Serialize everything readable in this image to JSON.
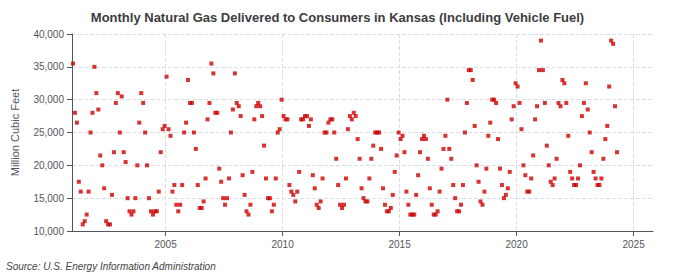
{
  "chart_data": {
    "type": "scatter",
    "title": "Monthly Natural Gas Delivered to Consumers in Kansas (Including Vehicle Fuel)",
    "ylabel": "Million Cubic Feet",
    "annotation": "Source: U.S. Energy Information Administration",
    "color": "#cc0000",
    "marker": "square",
    "grid": true,
    "xlim": [
      2001.0,
      2025.83
    ],
    "xticks": [
      2005,
      2010,
      2015,
      2020,
      2025
    ],
    "ylim": [
      10000,
      40000
    ],
    "yticks": [
      {
        "value": 10000,
        "label": "10,000"
      },
      {
        "value": 15000,
        "label": "15,000"
      },
      {
        "value": 20000,
        "label": "20,000"
      },
      {
        "value": 25000,
        "label": "25,000"
      },
      {
        "value": 30000,
        "label": "30,000"
      },
      {
        "value": 35000,
        "label": "35,000"
      },
      {
        "value": 40000,
        "label": "40,000"
      }
    ],
    "x": [
      2001.0416666667,
      2001.125,
      2001.2083333333,
      2001.2916666667,
      2001.375,
      2001.4583333333,
      2001.5416666667,
      2001.625,
      2001.7083333333,
      2001.7916666667,
      2001.875,
      2001.9583333333,
      2002.0416666667,
      2002.125,
      2002.2083333333,
      2002.2916666667,
      2002.375,
      2002.4583333333,
      2002.5416666667,
      2002.625,
      2002.7083333333,
      2002.7916666667,
      2002.875,
      2002.9583333333,
      2003.0416666667,
      2003.125,
      2003.2083333333,
      2003.2916666667,
      2003.375,
      2003.4583333333,
      2003.5416666667,
      2003.625,
      2003.7083333333,
      2003.7916666667,
      2003.875,
      2003.9583333333,
      2004.0416666667,
      2004.125,
      2004.2083333333,
      2004.2916666667,
      2004.375,
      2004.4583333333,
      2004.5416666667,
      2004.625,
      2004.7083333333,
      2004.7916666667,
      2004.875,
      2004.9583333333,
      2005.0416666667,
      2005.125,
      2005.2083333333,
      2005.2916666667,
      2005.375,
      2005.4583333333,
      2005.5416666667,
      2005.625,
      2005.7083333333,
      2005.7916666667,
      2005.875,
      2005.9583333333,
      2006.0416666667,
      2006.125,
      2006.2083333333,
      2006.2916666667,
      2006.375,
      2006.4583333333,
      2006.5416666667,
      2006.625,
      2006.7083333333,
      2006.7916666667,
      2006.875,
      2006.9583333333,
      2007.0416666667,
      2007.125,
      2007.2083333333,
      2007.2916666667,
      2007.375,
      2007.4583333333,
      2007.5416666667,
      2007.625,
      2007.7083333333,
      2007.7916666667,
      2007.875,
      2007.9583333333,
      2008.0416666667,
      2008.125,
      2008.2083333333,
      2008.2916666667,
      2008.375,
      2008.4583333333,
      2008.5416666667,
      2008.625,
      2008.7083333333,
      2008.7916666667,
      2008.875,
      2008.9583333333,
      2009.0416666667,
      2009.125,
      2009.2083333333,
      2009.2916666667,
      2009.375,
      2009.4583333333,
      2009.5416666667,
      2009.625,
      2009.7083333333,
      2009.7916666667,
      2009.875,
      2009.9583333333,
      2010.0416666667,
      2010.125,
      2010.2083333333,
      2010.2916666667,
      2010.375,
      2010.4583333333,
      2010.5416666667,
      2010.625,
      2010.7083333333,
      2010.7916666667,
      2010.875,
      2010.9583333333,
      2011.0416666667,
      2011.125,
      2011.2083333333,
      2011.2916666667,
      2011.375,
      2011.4583333333,
      2011.5416666667,
      2011.625,
      2011.7083333333,
      2011.7916666667,
      2011.875,
      2011.9583333333,
      2012.0416666667,
      2012.125,
      2012.2083333333,
      2012.2916666667,
      2012.375,
      2012.4583333333,
      2012.5416666667,
      2012.625,
      2012.7083333333,
      2012.7916666667,
      2012.875,
      2012.9583333333,
      2013.0416666667,
      2013.125,
      2013.2083333333,
      2013.2916666667,
      2013.375,
      2013.4583333333,
      2013.5416666667,
      2013.625,
      2013.7083333333,
      2013.7916666667,
      2013.875,
      2013.9583333333,
      2014.0416666667,
      2014.125,
      2014.2083333333,
      2014.2916666667,
      2014.375,
      2014.4583333333,
      2014.5416666667,
      2014.625,
      2014.7083333333,
      2014.7916666667,
      2014.875,
      2014.9583333333,
      2015.0416666667,
      2015.125,
      2015.2083333333,
      2015.2916666667,
      2015.375,
      2015.4583333333,
      2015.5416666667,
      2015.625,
      2015.7083333333,
      2015.7916666667,
      2015.875,
      2015.9583333333,
      2016.0416666667,
      2016.125,
      2016.2083333333,
      2016.2916666667,
      2016.375,
      2016.4583333333,
      2016.5416666667,
      2016.625,
      2016.7083333333,
      2016.7916666667,
      2016.875,
      2016.9583333333,
      2017.0416666667,
      2017.125,
      2017.2083333333,
      2017.2916666667,
      2017.375,
      2017.4583333333,
      2017.5416666667,
      2017.625,
      2017.7083333333,
      2017.7916666667,
      2017.875,
      2017.9583333333,
      2018.0416666667,
      2018.125,
      2018.2083333333,
      2018.2916666667,
      2018.375,
      2018.4583333333,
      2018.5416666667,
      2018.625,
      2018.7083333333,
      2018.7916666667,
      2018.875,
      2018.9583333333,
      2019.0416666667,
      2019.125,
      2019.2083333333,
      2019.2916666667,
      2019.375,
      2019.4583333333,
      2019.5416666667,
      2019.625,
      2019.7083333333,
      2019.7916666667,
      2019.875,
      2019.9583333333,
      2020.0416666667,
      2020.125,
      2020.2083333333,
      2020.2916666667,
      2020.375,
      2020.4583333333,
      2020.5416666667,
      2020.625,
      2020.7083333333,
      2020.7916666667,
      2020.875,
      2020.9583333333,
      2021.0416666667,
      2021.125,
      2021.2083333333,
      2021.2916666667,
      2021.375,
      2021.4583333333,
      2021.5416666667,
      2021.625,
      2021.7083333333,
      2021.7916666667,
      2021.875,
      2021.9583333333,
      2022.0416666667,
      2022.125,
      2022.2083333333,
      2022.2916666667,
      2022.375,
      2022.4583333333,
      2022.5416666667,
      2022.625,
      2022.7083333333,
      2022.7916666667,
      2022.875,
      2022.9583333333,
      2023.0416666667,
      2023.125,
      2023.2083333333,
      2023.2916666667,
      2023.375,
      2023.4583333333,
      2023.5416666667,
      2023.625,
      2023.7083333333,
      2023.7916666667,
      2023.875,
      2023.9583333333,
      2024.0416666667,
      2024.125,
      2024.2083333333,
      2024.2916666667
    ],
    "values": [
      35500,
      28000,
      26500,
      17500,
      16000,
      11000,
      11500,
      12500,
      16000,
      25000,
      28000,
      35000,
      31000,
      28500,
      21500,
      20000,
      16500,
      11500,
      11000,
      11000,
      15500,
      22000,
      29500,
      31000,
      25000,
      30500,
      22000,
      20500,
      15000,
      13000,
      12500,
      13000,
      15000,
      20000,
      26500,
      31000,
      29500,
      25000,
      20000,
      15000,
      13000,
      12500,
      13000,
      13000,
      16000,
      22000,
      25500,
      26000,
      33500,
      25500,
      24500,
      16000,
      17000,
      14000,
      13000,
      14000,
      17000,
      25000,
      26500,
      33000,
      29500,
      29500,
      25000,
      22500,
      17000,
      13500,
      13500,
      14500,
      18000,
      27000,
      29500,
      35500,
      34000,
      28000,
      28000,
      19500,
      17500,
      15000,
      14000,
      15000,
      18000,
      25000,
      28500,
      34000,
      29500,
      29000,
      27500,
      18500,
      15500,
      13000,
      12500,
      14000,
      19000,
      27000,
      29000,
      29500,
      29000,
      27500,
      23000,
      18000,
      15000,
      15000,
      13000,
      14000,
      18000,
      25000,
      25500,
      30000,
      27500,
      27000,
      27000,
      17000,
      16000,
      15500,
      14500,
      16000,
      19000,
      27000,
      27000,
      27500,
      27500,
      26000,
      27000,
      18500,
      16500,
      14000,
      13500,
      14500,
      18000,
      25000,
      25000,
      26500,
      27000,
      27000,
      25000,
      21000,
      17000,
      14000,
      13500,
      14000,
      18000,
      25500,
      27500,
      27000,
      28000,
      27500,
      24000,
      21000,
      16500,
      15000,
      14500,
      14500,
      18000,
      21000,
      23000,
      25000,
      25000,
      25000,
      22500,
      16500,
      14000,
      13000,
      13000,
      13500,
      15500,
      19000,
      21500,
      25000,
      24000,
      24500,
      22000,
      16000,
      14000,
      12500,
      12500,
      12500,
      15500,
      18500,
      22000,
      24000,
      24500,
      24000,
      21000,
      16500,
      14000,
      12500,
      12500,
      13000,
      16000,
      19500,
      22500,
      24500,
      30000,
      22500,
      21000,
      17000,
      15000,
      13000,
      13000,
      14000,
      17000,
      25000,
      29500,
      34500,
      34500,
      33000,
      26000,
      20000,
      17500,
      14500,
      14000,
      16000,
      19500,
      24500,
      26500,
      30000,
      30000,
      29500,
      24000,
      19500,
      17000,
      15000,
      15500,
      16500,
      19000,
      27000,
      29000,
      32500,
      32000,
      29500,
      25500,
      20000,
      18500,
      16000,
      16000,
      18000,
      21500,
      27000,
      29000,
      34500,
      39000,
      34500,
      29500,
      23000,
      20000,
      17500,
      17000,
      18000,
      21000,
      29500,
      29000,
      33000,
      32500,
      29500,
      24500,
      19000,
      18000,
      17000,
      17000,
      18000,
      20000,
      27500,
      29500,
      32500,
      28500,
      25000,
      22000,
      19000,
      18000,
      17000,
      17000,
      18000,
      21000,
      24000,
      26000,
      32000,
      39000,
      38500,
      29000,
      22000
    ]
  }
}
